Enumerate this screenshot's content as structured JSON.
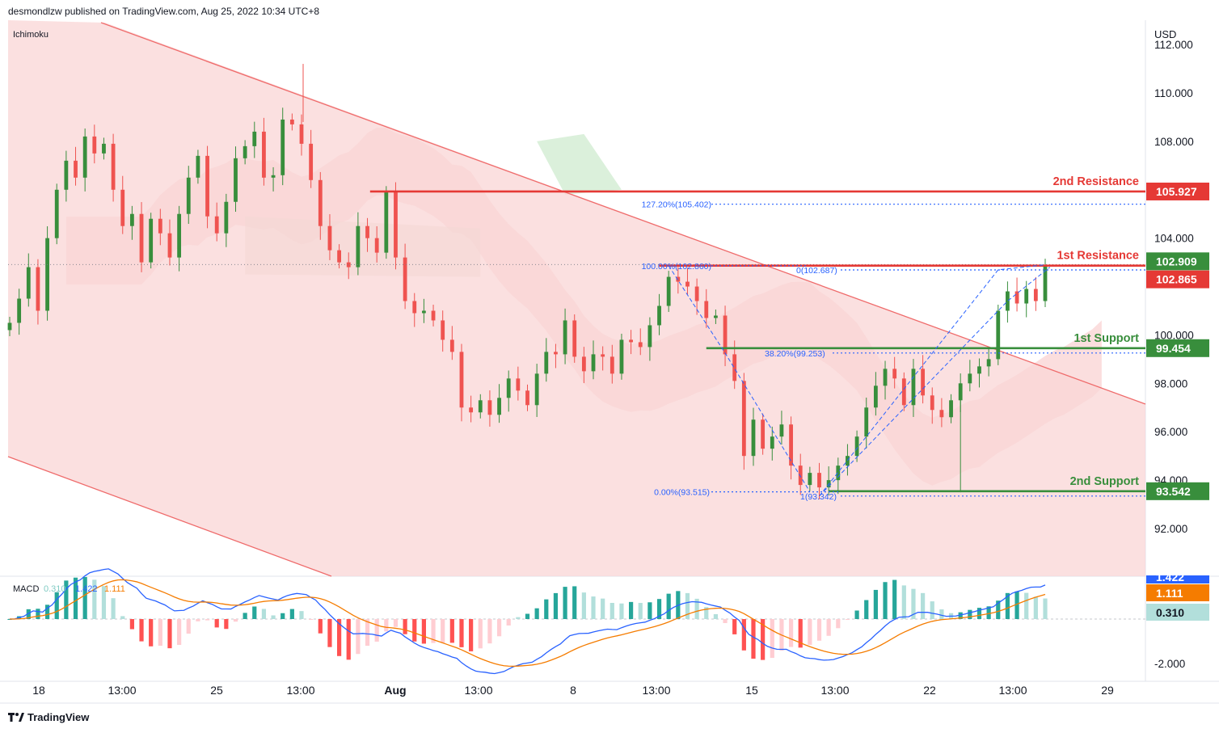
{
  "header": {
    "published": "desmondlzw published on TradingView.com, Aug 25, 2022 10:34 UTC+8"
  },
  "footer": {
    "brand": "TradingView"
  },
  "colors": {
    "bull": "#26a69a",
    "bull_dark": "#388e3c",
    "bear": "#ef5350",
    "resistance": "#e53935",
    "support": "#388e3c",
    "fib": "#2962ff",
    "macd_line": "#2962ff",
    "signal_line": "#f57c00",
    "cloud_red": "#f8c3c3",
    "cloud_green": "#d7eed7",
    "channel": "#f9d6d6"
  },
  "chart_data": [
    {
      "type": "candlestick",
      "indicator": "Ichimoku",
      "currency": "USD",
      "x_ticks": [
        "18",
        "13:00",
        "25",
        "13:00",
        "Aug",
        "13:00",
        "8",
        "13:00",
        "15",
        "13:00",
        "22",
        "13:00",
        "29"
      ],
      "y_ticks": [
        "112.000",
        "110.000",
        "108.000",
        "104.000",
        "100.000",
        "98.000",
        "96.000",
        "94.000",
        "92.000"
      ],
      "ylim": [
        90.2,
        112.8
      ],
      "price_labels": [
        {
          "value": 105.927,
          "text": "105.927",
          "color": "#e53935"
        },
        {
          "value": 102.909,
          "text": "102.909",
          "color": "#388e3c"
        },
        {
          "value": 102.865,
          "text": "102.865",
          "color": "#e53935"
        },
        {
          "value": 99.454,
          "text": "99.454",
          "color": "#388e3c"
        },
        {
          "value": 93.542,
          "text": "93.542",
          "color": "#388e3c"
        }
      ],
      "levels": [
        {
          "name": "2nd Resistance",
          "value": 105.927,
          "color": "#e53935"
        },
        {
          "name": "1st Resistance",
          "value": 102.865,
          "color": "#e53935"
        },
        {
          "name": "1st Support",
          "value": 99.454,
          "color": "#388e3c"
        },
        {
          "name": "2nd Support",
          "value": 93.542,
          "color": "#388e3c"
        }
      ],
      "fib_labels": [
        {
          "text": "127.20%(105.402)",
          "value": 105.402
        },
        {
          "text": "100.00%(102.860)",
          "value": 102.86
        },
        {
          "text": "0(102.687)",
          "value": 102.687
        },
        {
          "text": "38.20%(99.253)",
          "value": 99.253
        },
        {
          "text": "0.00%(93.515)",
          "value": 93.515
        },
        {
          "text": "1(93.342)",
          "value": 93.342
        }
      ],
      "ohlc_close_path": [
        [
          0,
          100.5
        ],
        [
          2,
          101.5
        ],
        [
          4,
          102.8
        ],
        [
          6,
          101.0
        ],
        [
          8,
          104.0
        ],
        [
          10,
          106.0
        ],
        [
          12,
          107.2
        ],
        [
          14,
          106.5
        ],
        [
          16,
          108.2
        ],
        [
          18,
          107.5
        ],
        [
          20,
          107.9
        ],
        [
          22,
          106.0
        ],
        [
          24,
          104.5
        ],
        [
          26,
          105.0
        ],
        [
          28,
          103.0
        ],
        [
          30,
          104.8
        ],
        [
          32,
          104.2
        ],
        [
          34,
          103.2
        ],
        [
          36,
          105.0
        ],
        [
          38,
          106.5
        ],
        [
          40,
          107.4
        ],
        [
          42,
          104.9
        ],
        [
          44,
          104.2
        ],
        [
          46,
          105.5
        ],
        [
          48,
          107.3
        ],
        [
          50,
          107.8
        ],
        [
          52,
          108.4
        ],
        [
          54,
          106.5
        ],
        [
          56,
          106.6
        ],
        [
          58,
          108.9
        ],
        [
          60,
          108.7
        ],
        [
          62,
          107.9
        ],
        [
          64,
          106.4
        ],
        [
          66,
          104.5
        ],
        [
          68,
          103.5
        ],
        [
          70,
          103.0
        ],
        [
          72,
          102.8
        ],
        [
          74,
          104.5
        ],
        [
          76,
          104.0
        ],
        [
          78,
          103.4
        ],
        [
          80,
          105.9
        ],
        [
          82,
          103.2
        ],
        [
          84,
          101.4
        ],
        [
          86,
          100.9
        ],
        [
          88,
          101.0
        ],
        [
          90,
          100.6
        ],
        [
          92,
          99.8
        ],
        [
          94,
          99.3
        ],
        [
          96,
          97.0
        ],
        [
          98,
          96.8
        ],
        [
          100,
          97.3
        ],
        [
          102,
          96.7
        ],
        [
          104,
          97.4
        ],
        [
          106,
          98.2
        ],
        [
          108,
          97.7
        ],
        [
          110,
          97.1
        ],
        [
          112,
          98.4
        ],
        [
          114,
          99.3
        ],
        [
          116,
          99.2
        ],
        [
          118,
          100.6
        ],
        [
          120,
          99.1
        ],
        [
          122,
          98.5
        ],
        [
          124,
          99.2
        ],
        [
          126,
          99.1
        ],
        [
          128,
          98.4
        ],
        [
          130,
          99.8
        ],
        [
          132,
          99.7
        ],
        [
          134,
          99.5
        ],
        [
          136,
          100.4
        ],
        [
          138,
          101.2
        ],
        [
          140,
          102.4
        ],
        [
          142,
          102.2
        ],
        [
          144,
          102.0
        ],
        [
          146,
          101.4
        ],
        [
          148,
          100.7
        ],
        [
          150,
          100.8
        ],
        [
          152,
          99.2
        ],
        [
          154,
          98.1
        ],
        [
          156,
          95.0
        ],
        [
          158,
          96.5
        ],
        [
          160,
          95.3
        ],
        [
          162,
          95.8
        ],
        [
          164,
          96.3
        ],
        [
          166,
          94.6
        ],
        [
          168,
          93.8
        ],
        [
          170,
          94.3
        ],
        [
          172,
          93.7
        ],
        [
          174,
          94.0
        ],
        [
          176,
          94.6
        ],
        [
          178,
          95.0
        ],
        [
          180,
          95.8
        ],
        [
          182,
          97.0
        ],
        [
          184,
          97.9
        ],
        [
          186,
          98.6
        ],
        [
          188,
          98.2
        ],
        [
          190,
          97.1
        ],
        [
          192,
          98.6
        ],
        [
          194,
          97.5
        ],
        [
          196,
          96.9
        ],
        [
          198,
          96.6
        ],
        [
          200,
          97.3
        ],
        [
          202,
          98.0
        ],
        [
          204,
          98.4
        ],
        [
          206,
          98.7
        ],
        [
          208,
          99.0
        ],
        [
          210,
          101.0
        ],
        [
          212,
          101.8
        ],
        [
          214,
          101.3
        ],
        [
          216,
          101.9
        ],
        [
          218,
          101.4
        ],
        [
          220,
          102.9
        ]
      ]
    },
    {
      "type": "bar",
      "indicator": "MACD",
      "legend_values": [
        "0.310",
        "1.422",
        "1.111"
      ],
      "y_ticks": [
        "-2.000"
      ],
      "price_labels": [
        {
          "value": 1.422,
          "text": "1.422",
          "color": "#2962ff"
        },
        {
          "value": 1.111,
          "text": "1.111",
          "color": "#f57c00"
        },
        {
          "value": 0.31,
          "text": "0.310",
          "color": "#b2dfdb"
        }
      ],
      "ylim": [
        -2.6,
        2.0
      ]
    }
  ]
}
